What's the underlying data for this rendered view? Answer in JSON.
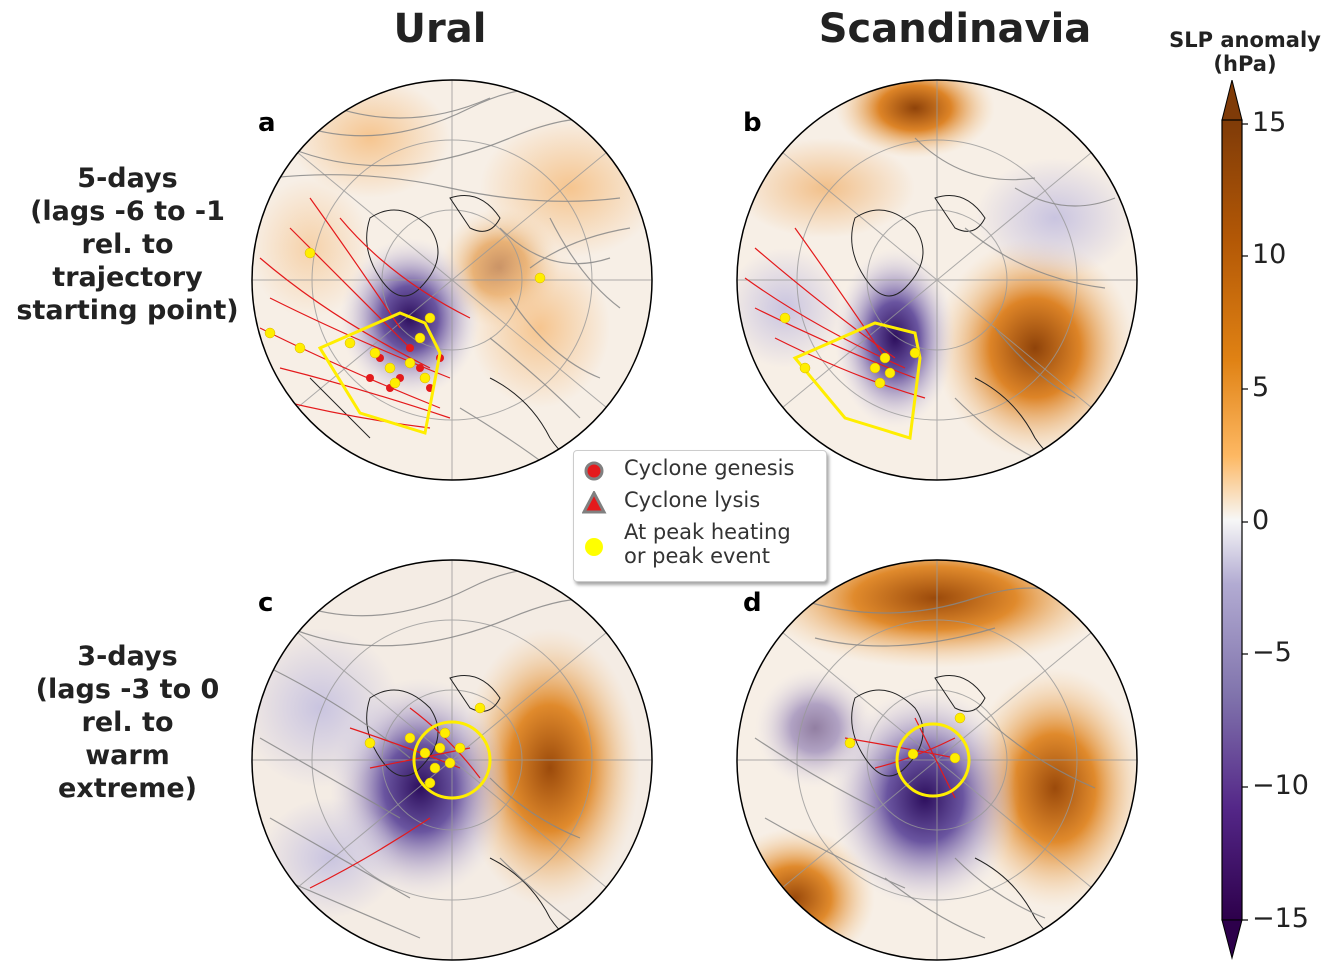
{
  "columns": [
    "Ural",
    "Scandinavia"
  ],
  "rows": [
    {
      "lines": [
        "5-days",
        "(lags -6 to -1",
        "rel. to",
        "trajectory",
        "starting point)"
      ]
    },
    {
      "lines": [
        "3-days",
        "(lags -3 to 0",
        "rel. to",
        "warm",
        "extreme)"
      ]
    }
  ],
  "panels": [
    {
      "letter": "a",
      "column": "Ural",
      "row": "5-days",
      "region": "sector"
    },
    {
      "letter": "b",
      "column": "Scandinavia",
      "row": "5-days",
      "region": "sector"
    },
    {
      "letter": "c",
      "column": "Ural",
      "row": "3-days",
      "region": "circle"
    },
    {
      "letter": "d",
      "column": "Scandinavia",
      "row": "3-days",
      "region": "circle"
    }
  ],
  "legend": [
    {
      "symbol": "circle",
      "label": "Cyclone genesis"
    },
    {
      "symbol": "triangle",
      "label": "Cyclone lysis"
    },
    {
      "symbol": "yellow-dot",
      "label_lines": [
        "At peak heating",
        "or peak event"
      ]
    }
  ],
  "colorbar": {
    "title_lines": [
      "SLP anomaly",
      "(hPa)"
    ],
    "min": -15,
    "max": 15,
    "ticks": [
      15,
      10,
      5,
      0,
      -5,
      -10,
      -15
    ],
    "tick_labels": [
      "15",
      "10",
      "5",
      "0",
      "−5",
      "−10",
      "−15"
    ],
    "colormap": "PuOr_r",
    "extend": "both"
  },
  "colors": {
    "positive_anomaly": "#9b4a0b",
    "negative_anomaly": "#3b1a6b",
    "track_warm": "#e41a1c",
    "track_other": "#808080",
    "peak_marker": "#ffff00",
    "region_outline": "#ffee00"
  }
}
